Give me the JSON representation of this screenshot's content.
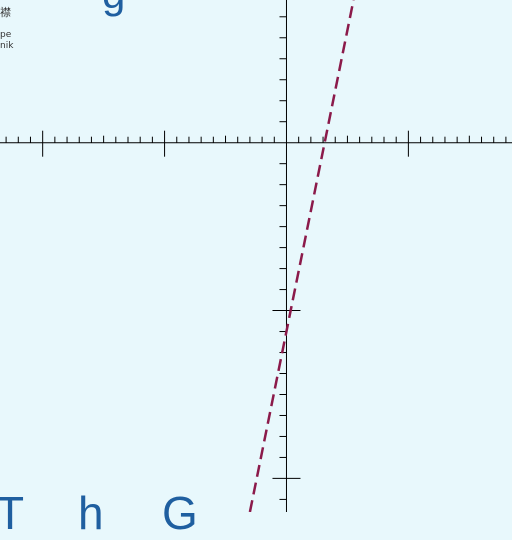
{
  "chart_data": {
    "type": "line",
    "title": "",
    "xlabel": "",
    "ylabel": "",
    "xlim": [
      -4.7,
      3.7
    ],
    "ylim": [
      -8.8,
      3.4
    ],
    "grid": false,
    "series": [
      {
        "points": [
          [
            -0.6,
            -8.8
          ],
          [
            1.1,
            3.4
          ]
        ],
        "color": "#8b1a4a",
        "style": "dashed"
      }
    ]
  },
  "corner_text": [
    "襟",
    "pe",
    "nik"
  ],
  "big_labels": [
    "g",
    "T",
    "h",
    "G"
  ],
  "colors": {
    "background": "#e8f8fc",
    "axis": "#000000",
    "series": "#8b1a4a",
    "big_label": "#1f5fa0"
  }
}
